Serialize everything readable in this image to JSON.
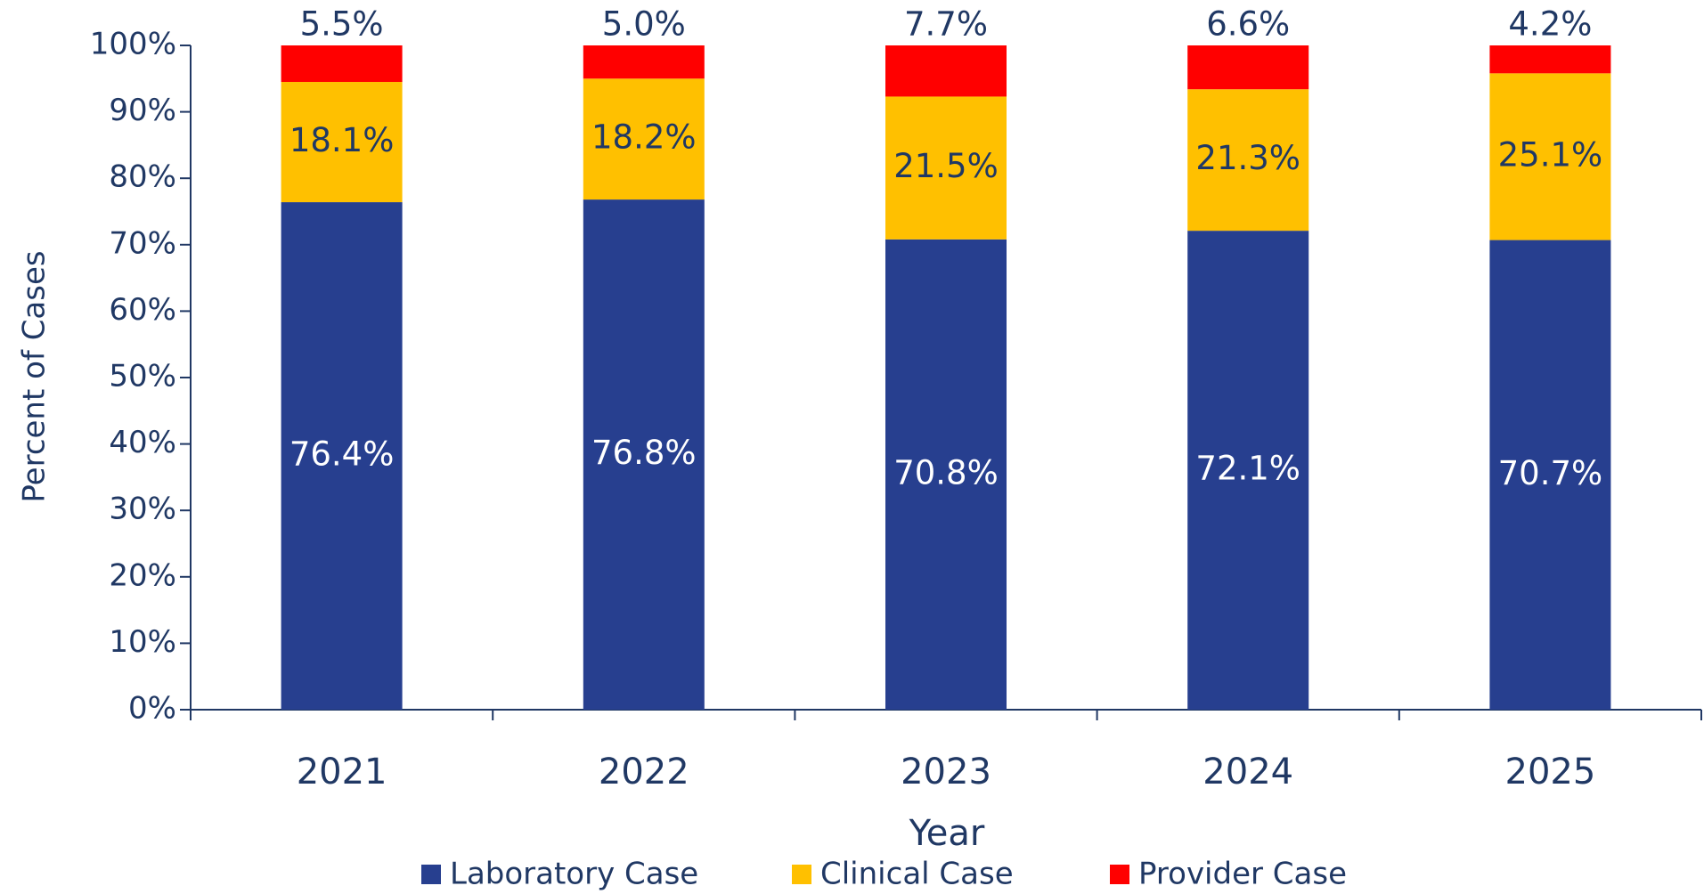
{
  "chart_data": {
    "type": "stacked_bar",
    "categories": [
      "2021",
      "2022",
      "2023",
      "2024",
      "2025"
    ],
    "series": [
      {
        "name": "Laboratory Case",
        "color": "#273f8f",
        "values": [
          76.4,
          76.8,
          70.8,
          72.1,
          70.7
        ],
        "value_labels": [
          "76.4%",
          "76.8%",
          "70.8%",
          "72.1%",
          "70.7%"
        ]
      },
      {
        "name": "Clinical Case",
        "color": "#ffc000",
        "values": [
          18.1,
          18.2,
          21.5,
          21.3,
          25.1
        ],
        "value_labels": [
          "18.1%",
          "18.2%",
          "21.5%",
          "21.3%",
          "25.1%"
        ]
      },
      {
        "name": "Provider Case",
        "color": "#ff0000",
        "values": [
          5.5,
          5.0,
          7.7,
          6.6,
          4.2
        ],
        "value_labels": [
          "5.5%",
          "5.0%",
          "7.7%",
          "6.6%",
          "4.2%"
        ]
      }
    ],
    "x_label": "Year",
    "y_label": "Percent of Cases",
    "ylim": [
      0,
      100
    ],
    "yticks": [
      {
        "value": 0,
        "label": "0%"
      },
      {
        "value": 10,
        "label": "10%"
      },
      {
        "value": 20,
        "label": "20%"
      },
      {
        "value": 30,
        "label": "30%"
      },
      {
        "value": 40,
        "label": "40%"
      },
      {
        "value": 50,
        "label": "50%"
      },
      {
        "value": 60,
        "label": "60%"
      },
      {
        "value": 70,
        "label": "70%"
      },
      {
        "value": 80,
        "label": "80%"
      },
      {
        "value": 90,
        "label": "90%"
      },
      {
        "value": 100,
        "label": "100%"
      }
    ],
    "legend": "bottom"
  }
}
